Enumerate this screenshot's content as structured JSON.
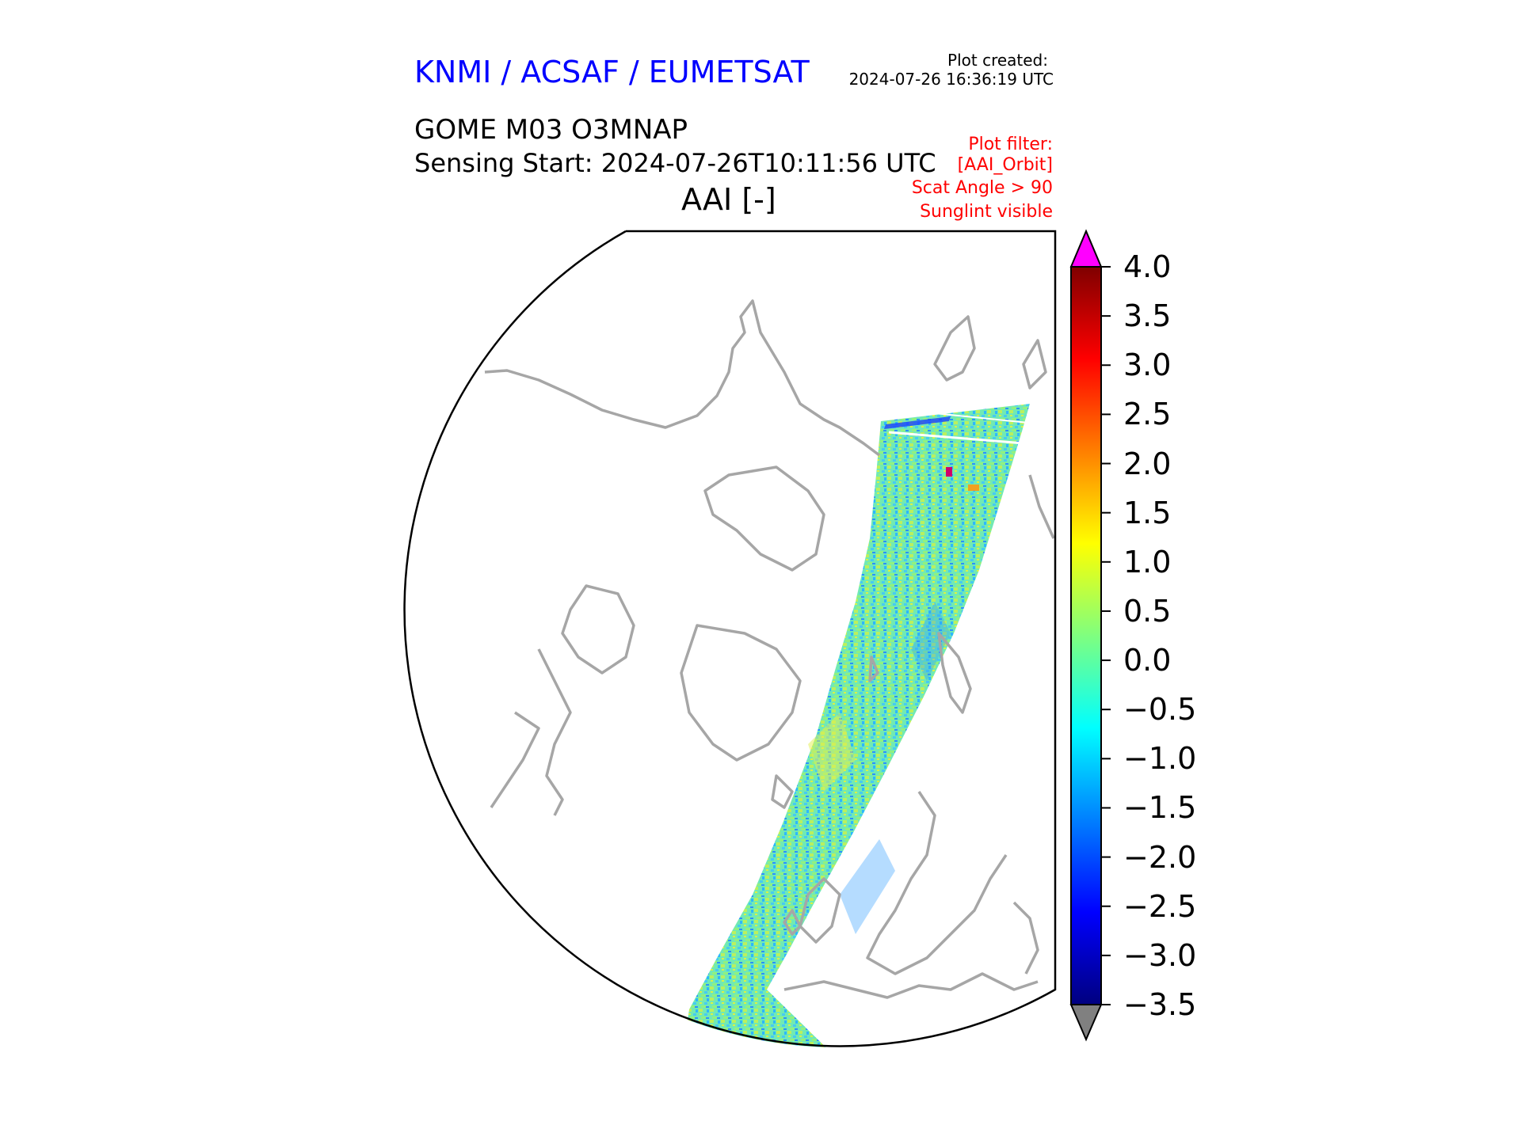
{
  "header": {
    "agency": "KNMI / ACSAF / EUMETSAT",
    "plot_created_label": "Plot created:",
    "plot_created": "2024-07-26 16:36:19 UTC",
    "product": "GOME M03 O3MNAP",
    "sensing_start": "Sensing Start: 2024-07-26T10:11:56 UTC",
    "variable": "AAI [-]",
    "filters": [
      "Plot filter:",
      "[AAI_Orbit]",
      "Scat Angle > 90",
      "Sunglint visible"
    ]
  },
  "colorbar": {
    "min": -3.5,
    "max": 4.0,
    "ticks": [
      "4.0",
      "3.5",
      "3.0",
      "2.5",
      "2.0",
      "1.5",
      "1.0",
      "0.5",
      "0.0",
      "−0.5",
      "−1.0",
      "−1.5",
      "−2.0",
      "−2.5",
      "−3.0",
      "−3.5"
    ],
    "over_color": "#ff00ff",
    "under_color": "#808080",
    "colormap": [
      "#00007f",
      "#0000ff",
      "#007fff",
      "#00ffff",
      "#7fff7f",
      "#ffff00",
      "#ff7f00",
      "#ff0000",
      "#7f0000"
    ]
  },
  "map": {
    "projection": "polar stereographic (north)",
    "coastline_color": "#a6a6a6",
    "swath_dominant_color": "#66e6aa"
  }
}
